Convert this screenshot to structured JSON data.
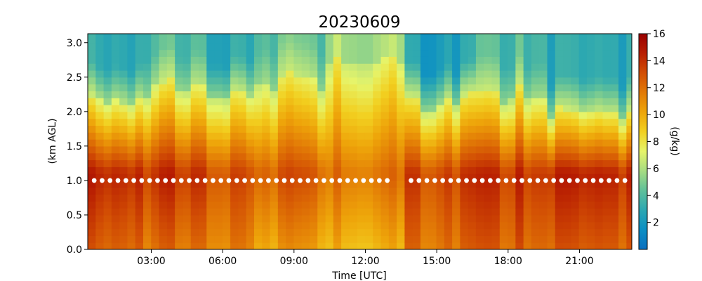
{
  "chart_data": {
    "type": "heatmap",
    "title": "20230609",
    "xlabel": "Time [UTC]",
    "ylabel": "(km AGL)",
    "colorbar_label": "(g/kg)",
    "x_tick_labels": [
      "03:00",
      "06:00",
      "09:00",
      "12:00",
      "15:00",
      "18:00",
      "21:00"
    ],
    "x_tick_hours": [
      3,
      6,
      9,
      12,
      15,
      18,
      21
    ],
    "xlim_hours": [
      0.33,
      23.2
    ],
    "y_tick_labels": [
      "0.0",
      "0.5",
      "1.0",
      "1.5",
      "2.0",
      "2.5",
      "3.0"
    ],
    "y_tick_values": [
      0,
      0.5,
      1.0,
      1.5,
      2.0,
      2.5,
      3.0
    ],
    "ylim_km": [
      0,
      3.13
    ],
    "colorbar_tick_labels": [
      "2",
      "4",
      "6",
      "8",
      "10",
      "12",
      "14",
      "16"
    ],
    "colorbar_tick_values": [
      2,
      4,
      6,
      8,
      10,
      12,
      14,
      16
    ],
    "color_range": [
      0,
      16
    ],
    "colormap": [
      "#0a6fc0",
      "#0b8fc4",
      "#2ba7b2",
      "#5fc09a",
      "#a6dc82",
      "#e6f46a",
      "#f2d020",
      "#eea50a",
      "#e27a06",
      "#d24e04",
      "#b81e02",
      "#9a0000"
    ],
    "time_step_hours": 0.333,
    "height_levels_km": [
      0.0,
      0.1,
      0.2,
      0.3,
      0.4,
      0.5,
      0.6,
      0.7,
      0.8,
      0.9,
      1.0,
      1.1,
      1.2,
      1.3,
      1.4,
      1.5,
      1.6,
      1.7,
      1.8,
      1.9,
      2.0,
      2.1,
      2.2,
      2.3,
      2.4,
      2.5,
      2.6,
      2.7,
      2.8,
      2.9,
      3.0
    ],
    "marker_series": {
      "name": "",
      "height_km": 1.0,
      "color": "#ffffff",
      "x_start_hours": 0.6,
      "x_end_hours": 23.2,
      "step_hours": 0.333,
      "gap_hours": [
        13.1,
        13.7
      ]
    },
    "profile_segments": [
      {
        "from_hours": 0.33,
        "to_hours": 2.4,
        "surface": 12.5,
        "max": 14.3,
        "top": 2.1,
        "aloft": 3.0
      },
      {
        "from_hours": 2.4,
        "to_hours": 5.0,
        "surface": 12.0,
        "max": 14.0,
        "top": 2.3,
        "aloft": 4.0
      },
      {
        "from_hours": 5.0,
        "to_hours": 7.0,
        "surface": 11.5,
        "max": 13.2,
        "top": 2.2,
        "aloft": 3.0
      },
      {
        "from_hours": 7.0,
        "to_hours": 10.0,
        "surface": 10.5,
        "max": 12.8,
        "top": 2.4,
        "aloft": 4.5
      },
      {
        "from_hours": 10.0,
        "to_hours": 13.5,
        "surface": 9.8,
        "max": 12.0,
        "top": 2.7,
        "aloft": 6.0
      },
      {
        "from_hours": 13.5,
        "to_hours": 16.5,
        "surface": 12.0,
        "max": 13.5,
        "top": 2.1,
        "aloft": 2.5
      },
      {
        "from_hours": 16.5,
        "to_hours": 19.5,
        "surface": 12.5,
        "max": 14.0,
        "top": 2.2,
        "aloft": 4.0
      },
      {
        "from_hours": 19.5,
        "to_hours": 23.2,
        "surface": 12.5,
        "max": 14.2,
        "top": 1.9,
        "aloft": 2.8
      }
    ]
  }
}
